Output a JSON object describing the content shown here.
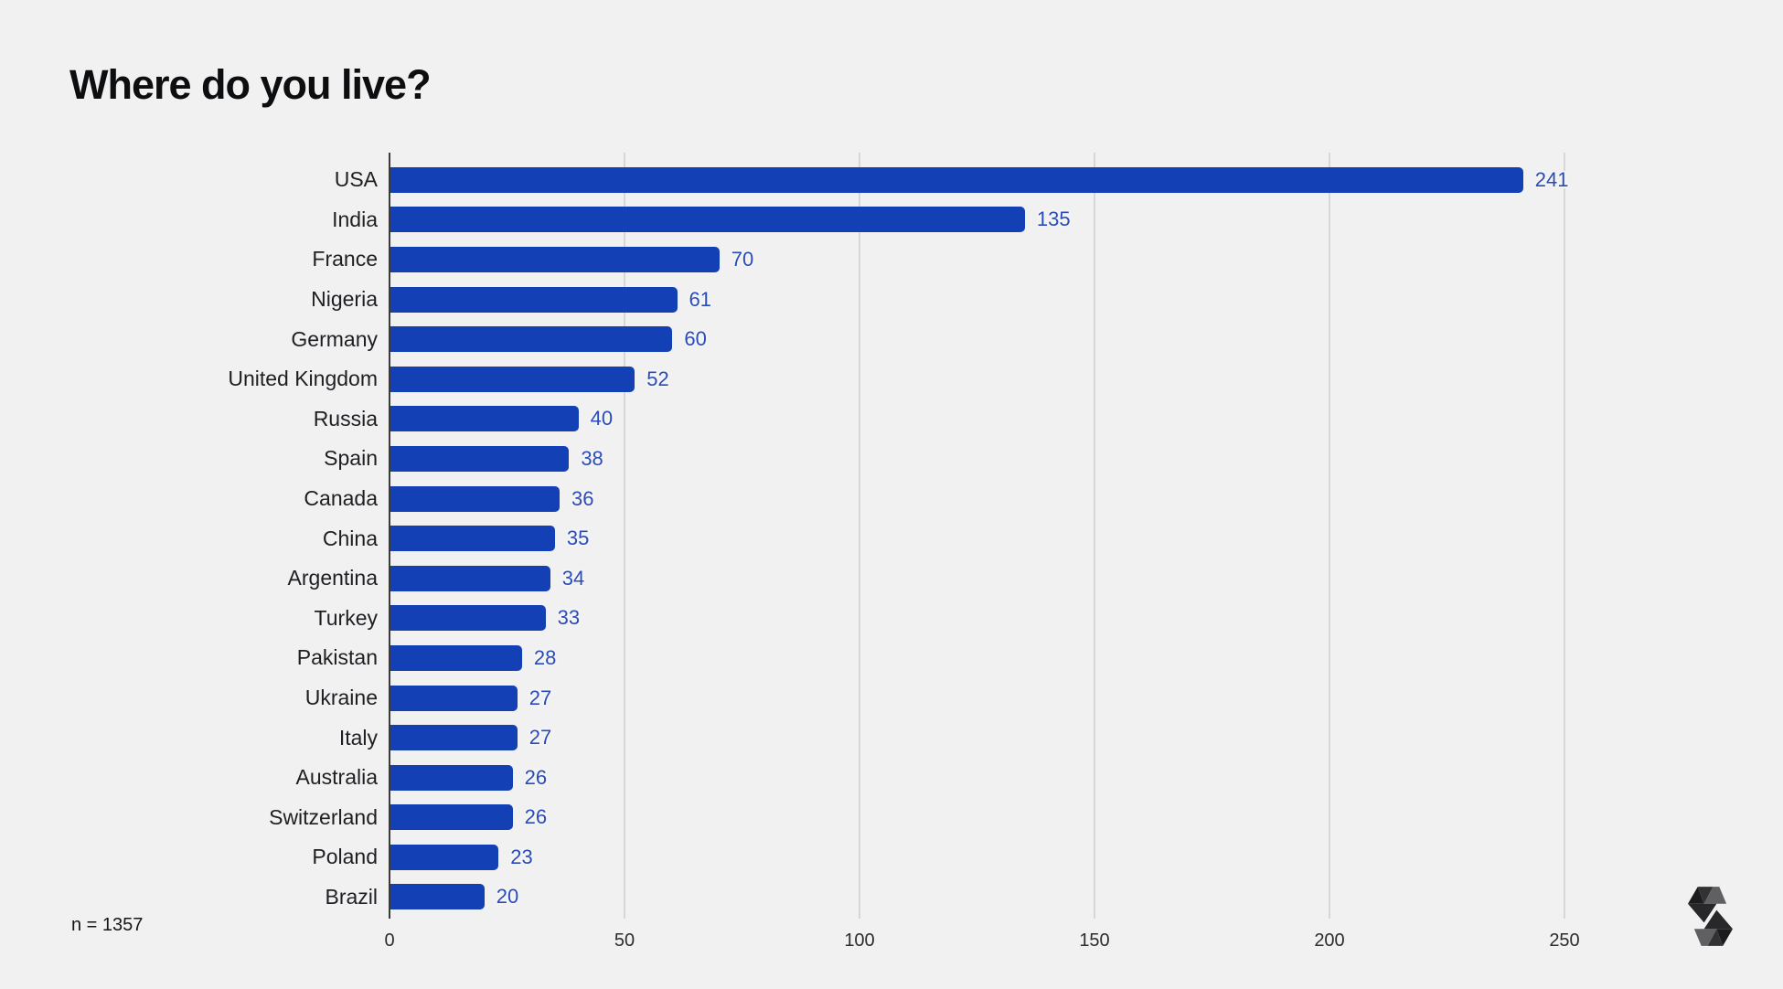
{
  "title": "Where do you live?",
  "footnote": "n = 1357",
  "chart_data": {
    "type": "bar",
    "orientation": "horizontal",
    "title": "Where do you live?",
    "xlabel": "",
    "ylabel": "",
    "categories": [
      "USA",
      "India",
      "France",
      "Nigeria",
      "Germany",
      "United Kingdom",
      "Russia",
      "Spain",
      "Canada",
      "China",
      "Argentina",
      "Turkey",
      "Pakistan",
      "Ukraine",
      "Italy",
      "Australia",
      "Switzerland",
      "Poland",
      "Brazil"
    ],
    "values": [
      241,
      135,
      70,
      61,
      60,
      52,
      40,
      38,
      36,
      35,
      34,
      33,
      28,
      27,
      27,
      26,
      26,
      23,
      20
    ],
    "xticks": [
      0,
      50,
      100,
      150,
      200,
      250
    ],
    "xlim": [
      0,
      268
    ],
    "grid": true,
    "legend": "none",
    "annotation": "n = 1357",
    "bar_color": "#1340b5",
    "value_label_color": "#2a4cba",
    "background_color": "#f1f1f2",
    "gridline_color": "#d7d7d8",
    "axis_color": "#3a3a3c"
  },
  "logo": {
    "name": "solidity-logo",
    "colors": {
      "black": "#1c1c1e",
      "dark": "#323234",
      "gray": "#606062",
      "mid": "#28282a"
    }
  }
}
